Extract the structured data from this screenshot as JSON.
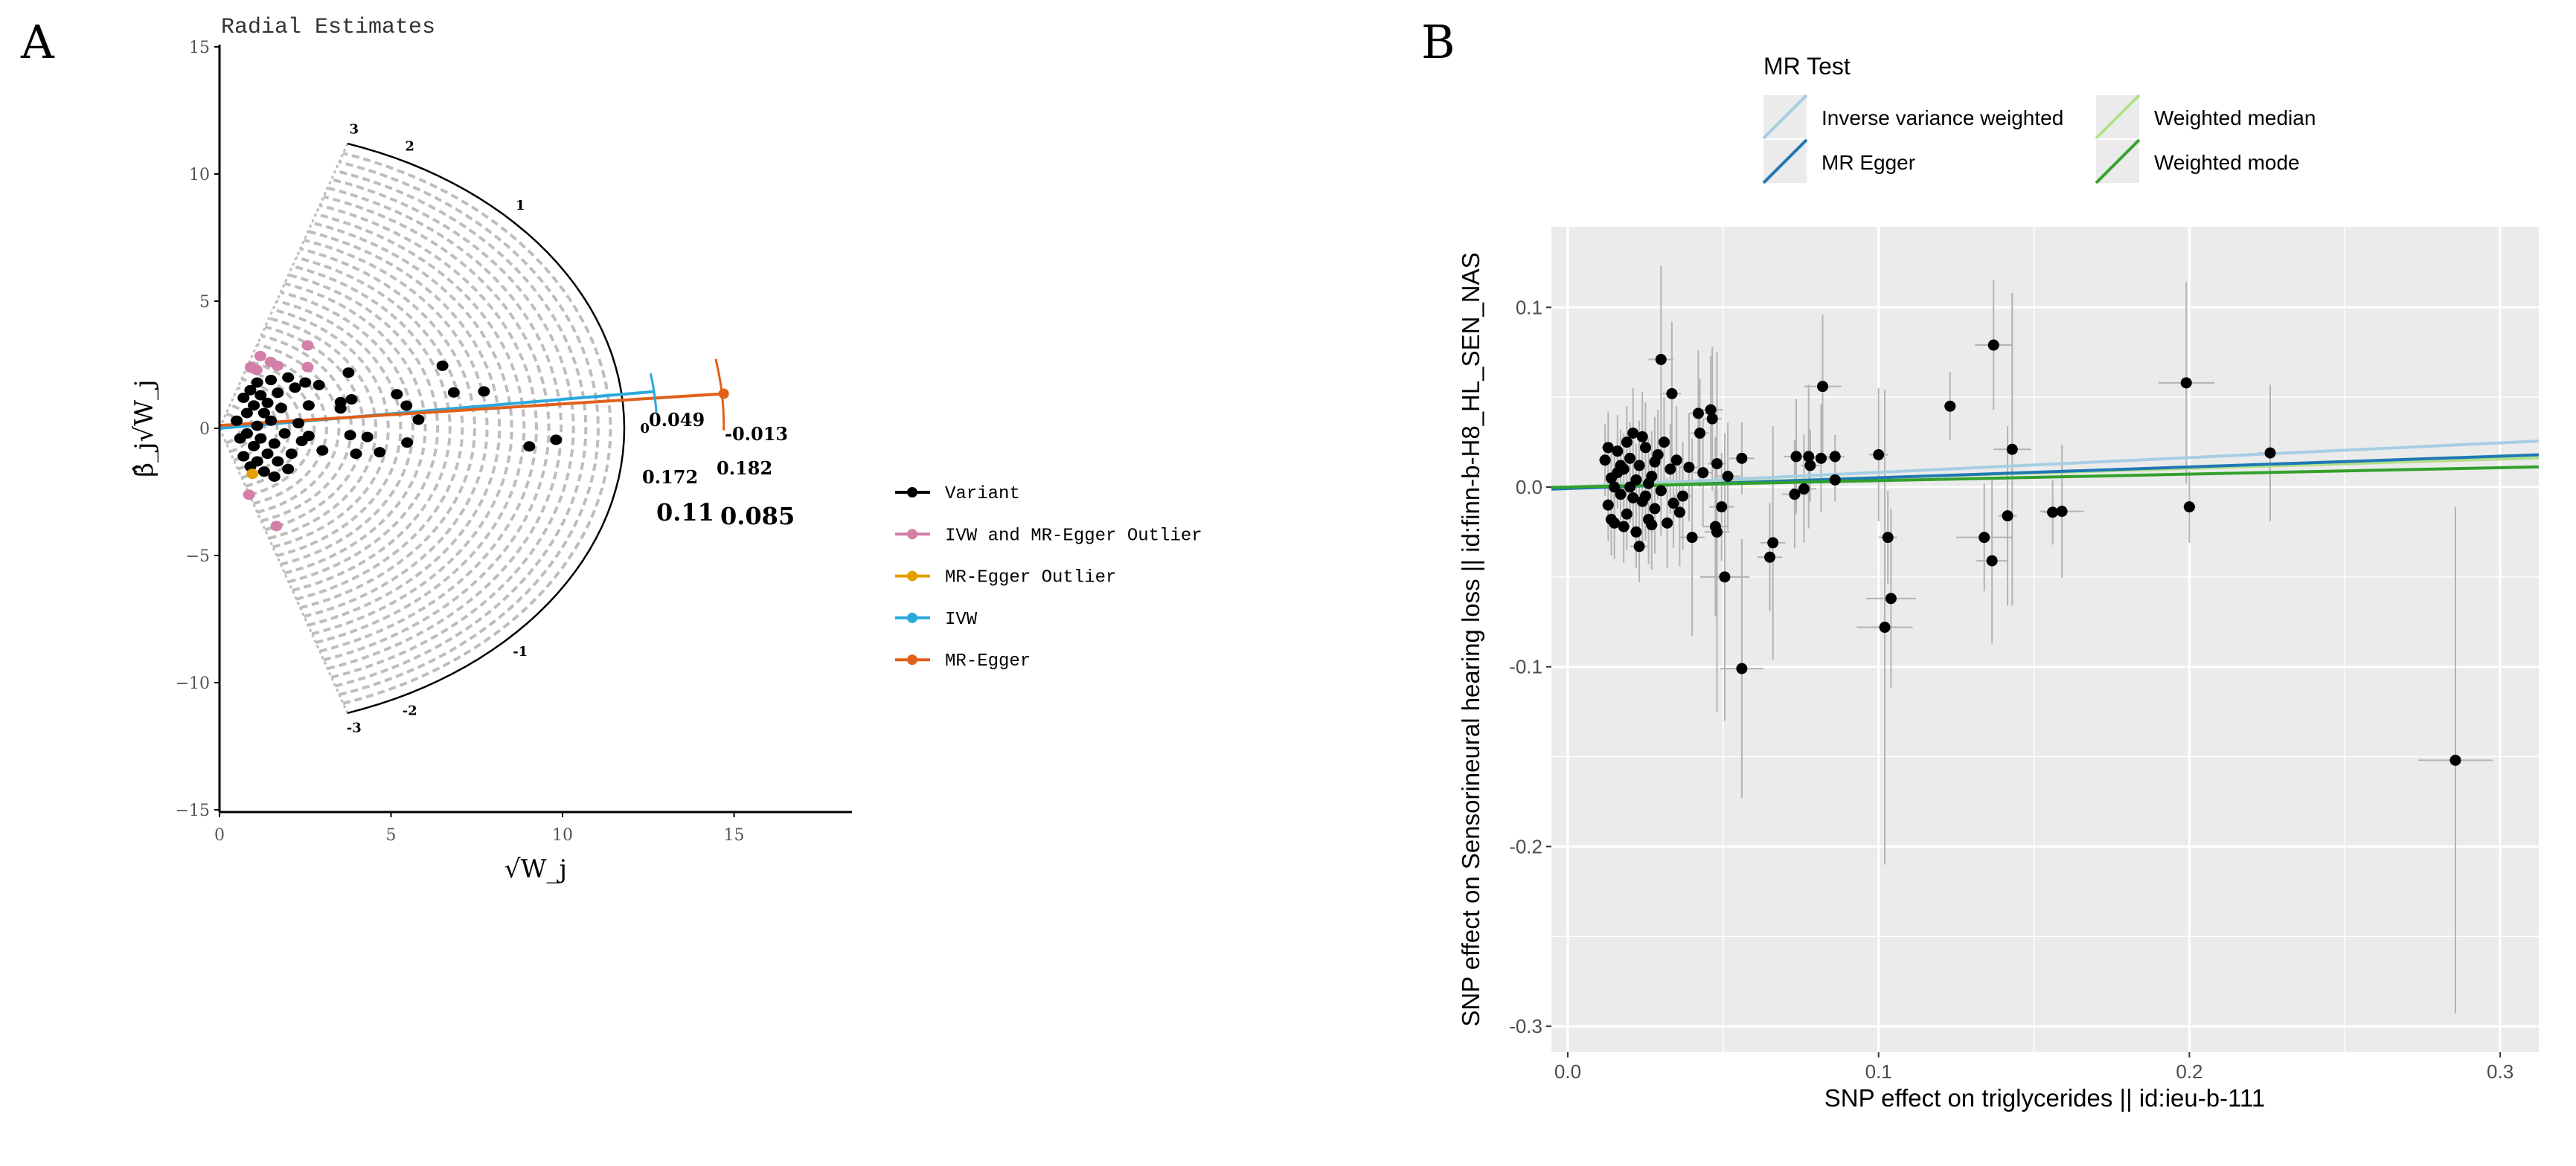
{
  "panel_labels": {
    "a": "A",
    "b": "B"
  },
  "chart_data": [
    {
      "type": "scatter",
      "title": "Radial Estimates",
      "xlabel": "√W_j",
      "ylabel": "β̂_j√W_j",
      "xlim": [
        0,
        18.5
      ],
      "ylim": [
        -15,
        15
      ],
      "x_ticks": [
        0,
        5,
        10,
        15
      ],
      "y_ticks": [
        15,
        10,
        5,
        0,
        -5,
        -10,
        -15
      ],
      "outer_radius": 11.8,
      "scale_labels": [
        3,
        2,
        1,
        0,
        -1,
        -2,
        -3
      ],
      "legend": {
        "position": "right",
        "items": [
          {
            "label": "Variant",
            "color": "#000000"
          },
          {
            "label": "IVW and MR-Egger Outlier",
            "color": "#d37fa8"
          },
          {
            "label": "MR-Egger Outlier",
            "color": "#e69f00"
          },
          {
            "label": "IVW",
            "color": "#2aa9de"
          },
          {
            "label": "MR-Egger",
            "color": "#e0601a"
          }
        ]
      },
      "estimates": {
        "ivw": {
          "estimate": "0.11",
          "upper": "0.172",
          "lower": "0.049",
          "slope": 0.114,
          "intercept": 0,
          "x_end": 12.7
        },
        "egger": {
          "estimate": "0.085",
          "upper": "0.182",
          "lower": "-0.013",
          "slope": 0.085,
          "intercept": 0.11,
          "x_end": 14.7
        }
      },
      "series": [
        {
          "name": "Variant",
          "points": [
            [
              6.5,
              2.46
            ],
            [
              6.83,
              1.41
            ],
            [
              7.71,
              1.45
            ],
            [
              3.76,
              2.19
            ],
            [
              9.03,
              -0.71
            ],
            [
              9.81,
              -0.45
            ],
            [
              5.47,
              -0.56
            ],
            [
              5.8,
              0.34
            ],
            [
              5.45,
              0.89
            ],
            [
              5.17,
              1.34
            ],
            [
              3.85,
              1.14
            ],
            [
              3.53,
              1.03
            ],
            [
              3.53,
              0.78
            ],
            [
              3.81,
              -0.27
            ],
            [
              4.31,
              -0.34
            ],
            [
              3.98,
              -1.0
            ],
            [
              4.67,
              -0.94
            ],
            [
              3.0,
              -0.87
            ],
            [
              2.9,
              1.7
            ],
            [
              0.5,
              0.3
            ],
            [
              0.6,
              -0.4
            ],
            [
              0.7,
              1.2
            ],
            [
              0.7,
              -1.1
            ],
            [
              0.8,
              0.6
            ],
            [
              0.8,
              -0.2
            ],
            [
              0.9,
              1.5
            ],
            [
              0.9,
              -1.5
            ],
            [
              1.0,
              0.9
            ],
            [
              1.0,
              -0.7
            ],
            [
              1.1,
              1.8
            ],
            [
              1.1,
              0.1
            ],
            [
              1.1,
              -1.3
            ],
            [
              1.2,
              1.3
            ],
            [
              1.2,
              -0.4
            ],
            [
              1.3,
              0.6
            ],
            [
              1.3,
              -1.7
            ],
            [
              1.4,
              1.0
            ],
            [
              1.4,
              -1.0
            ],
            [
              1.5,
              1.9
            ],
            [
              1.5,
              0.3
            ],
            [
              1.6,
              -0.6
            ],
            [
              1.7,
              1.4
            ],
            [
              1.7,
              -1.3
            ],
            [
              1.8,
              0.8
            ],
            [
              1.9,
              -0.2
            ],
            [
              2.0,
              2.0
            ],
            [
              2.1,
              -1.0
            ],
            [
              2.2,
              1.6
            ],
            [
              2.3,
              0.2
            ],
            [
              2.4,
              -0.5
            ],
            [
              2.5,
              1.8
            ],
            [
              2.6,
              -0.3
            ],
            [
              2.6,
              0.9
            ],
            [
              2.0,
              -1.6
            ],
            [
              1.6,
              -1.9
            ]
          ]
        },
        {
          "name": "IVW and MR-Egger Outlier",
          "points": [
            [
              2.57,
              3.26
            ],
            [
              1.19,
              2.84
            ],
            [
              1.49,
              2.61
            ],
            [
              1.69,
              2.46
            ],
            [
              0.91,
              2.41
            ],
            [
              1.08,
              2.3
            ],
            [
              2.57,
              2.41
            ],
            [
              0.86,
              -2.61
            ],
            [
              1.66,
              -3.84
            ]
          ]
        },
        {
          "name": "MR-Egger Outlier",
          "points": [
            [
              0.96,
              -1.79
            ]
          ]
        }
      ]
    },
    {
      "type": "scatter",
      "title": "",
      "xlabel": "SNP effect on triglycerides || id:ieu-b-111",
      "ylabel": "SNP effect on Sensorineural hearing loss || id:finn-b-H8_HL_SEN_NAS",
      "xlim": [
        -0.005,
        0.3124
      ],
      "ylim": [
        -0.315,
        0.145
      ],
      "x_ticks": [
        {
          "v": 0,
          "label": "0.0"
        },
        {
          "v": 0.1,
          "label": "0.1"
        },
        {
          "v": 0.2,
          "label": "0.2"
        },
        {
          "v": 0.3,
          "label": "0.3"
        }
      ],
      "y_ticks": [
        {
          "v": 0.1,
          "label": "0.1"
        },
        {
          "v": 0,
          "label": "0.0"
        },
        {
          "v": -0.1,
          "label": "-0.1"
        },
        {
          "v": -0.2,
          "label": "-0.2"
        },
        {
          "v": -0.3,
          "label": "-0.3"
        }
      ],
      "grid": true,
      "legend": {
        "title": "MR Test",
        "position": "top",
        "items": [
          {
            "label": "Inverse variance weighted",
            "color": "#a6cee3"
          },
          {
            "label": "MR Egger",
            "color": "#1f78b4"
          },
          {
            "label": "Weighted median",
            "color": "#b2df8a"
          },
          {
            "label": "Weighted mode",
            "color": "#33a02c"
          }
        ]
      },
      "lines": [
        {
          "name": "Inverse variance weighted",
          "slope": 0.082,
          "intercept": 0
        },
        {
          "name": "Weighted median",
          "slope": 0.052,
          "intercept": 0
        },
        {
          "name": "MR Egger",
          "slope": 0.06,
          "intercept": -0.0008
        },
        {
          "name": "Weighted mode",
          "slope": 0.036,
          "intercept": 0
        }
      ],
      "points_format": [
        "x",
        "y",
        "se_x",
        "se_y"
      ],
      "points": [
        [
          0.03,
          0.071,
          0.004,
          0.052
        ],
        [
          0.0335,
          0.052,
          0.003,
          0.04
        ],
        [
          0.042,
          0.041,
          0.003,
          0.035
        ],
        [
          0.046,
          0.043,
          0.004,
          0.03
        ],
        [
          0.0465,
          0.038,
          0.003,
          0.04
        ],
        [
          0.056,
          0.016,
          0.004,
          0.02
        ],
        [
          0.082,
          0.056,
          0.006,
          0.04
        ],
        [
          0.0735,
          0.017,
          0.004,
          0.032
        ],
        [
          0.0775,
          0.017,
          0.004,
          0.04
        ],
        [
          0.0815,
          0.016,
          0.004,
          0.03
        ],
        [
          0.086,
          0.017,
          0.003,
          0.012
        ],
        [
          0.078,
          0.012,
          0.003,
          0.02
        ],
        [
          0.1,
          0.018,
          0.003,
          0.037
        ],
        [
          0.123,
          0.045,
          0.002,
          0.019
        ],
        [
          0.137,
          0.079,
          0.006,
          0.036
        ],
        [
          0.143,
          0.021,
          0.006,
          0.087
        ],
        [
          0.199,
          0.058,
          0.009,
          0.056
        ],
        [
          0.226,
          0.019,
          0.004,
          0.038
        ],
        [
          0.2,
          -0.011,
          0.002,
          0.02
        ],
        [
          0.156,
          -0.014,
          0.003,
          0.018
        ],
        [
          0.159,
          -0.0135,
          0.007,
          0.037
        ],
        [
          0.1415,
          -0.016,
          0.003,
          0.05
        ],
        [
          0.134,
          -0.028,
          0.009,
          0.03
        ],
        [
          0.1365,
          -0.041,
          0.005,
          0.046
        ],
        [
          0.103,
          -0.028,
          0.003,
          0.026
        ],
        [
          0.104,
          -0.062,
          0.008,
          0.05
        ],
        [
          0.102,
          -0.078,
          0.009,
          0.132
        ],
        [
          0.066,
          -0.031,
          0.004,
          0.065
        ],
        [
          0.065,
          -0.039,
          0.004,
          0.03
        ],
        [
          0.0505,
          -0.05,
          0.008,
          0.08
        ],
        [
          0.056,
          -0.101,
          0.007,
          0.072
        ],
        [
          0.2856,
          -0.152,
          0.012,
          0.141
        ],
        [
          0.04,
          -0.028,
          0.004,
          0.055
        ],
        [
          0.023,
          -0.033,
          0.003,
          0.02
        ],
        [
          0.073,
          -0.004,
          0.004,
          0.03
        ],
        [
          0.076,
          -0.001,
          0.004,
          0.03
        ],
        [
          0.086,
          0.004,
          0.004,
          0.012
        ],
        [
          0.048,
          -0.025,
          0.004,
          0.1
        ],
        [
          0.0475,
          -0.022,
          0.004,
          0.05
        ],
        [
          0.0495,
          -0.011,
          0.004,
          0.03
        ],
        [
          0.0515,
          0.006,
          0.004,
          0.03
        ],
        [
          0.048,
          0.013,
          0.003,
          0.03
        ],
        [
          0.0435,
          0.008,
          0.003,
          0.03
        ],
        [
          0.039,
          0.011,
          0.003,
          0.03
        ],
        [
          0.0425,
          0.03,
          0.003,
          0.03
        ],
        [
          0.037,
          -0.005,
          0.003,
          0.03
        ],
        [
          0.012,
          0.015,
          0.002,
          0.02
        ],
        [
          0.013,
          -0.01,
          0.002,
          0.02
        ],
        [
          0.014,
          0.005,
          0.002,
          0.02
        ],
        [
          0.015,
          -0.02,
          0.002,
          0.02
        ],
        [
          0.016,
          0.02,
          0.002,
          0.02
        ],
        [
          0.017,
          -0.004,
          0.002,
          0.02
        ],
        [
          0.018,
          0.01,
          0.002,
          0.02
        ],
        [
          0.019,
          -0.015,
          0.002,
          0.02
        ],
        [
          0.02,
          0.0,
          0.002,
          0.02
        ],
        [
          0.021,
          0.03,
          0.002,
          0.025
        ],
        [
          0.022,
          -0.025,
          0.002,
          0.02
        ],
        [
          0.023,
          0.012,
          0.002,
          0.025
        ],
        [
          0.024,
          -0.008,
          0.002,
          0.025
        ],
        [
          0.025,
          0.022,
          0.002,
          0.025
        ],
        [
          0.026,
          -0.018,
          0.002,
          0.025
        ],
        [
          0.027,
          0.006,
          0.002,
          0.025
        ],
        [
          0.028,
          -0.012,
          0.002,
          0.025
        ],
        [
          0.029,
          0.018,
          0.002,
          0.025
        ],
        [
          0.03,
          -0.002,
          0.002,
          0.025
        ],
        [
          0.031,
          0.025,
          0.002,
          0.025
        ],
        [
          0.032,
          -0.02,
          0.002,
          0.025
        ],
        [
          0.033,
          0.01,
          0.002,
          0.025
        ],
        [
          0.034,
          -0.009,
          0.002,
          0.025
        ],
        [
          0.035,
          0.015,
          0.002,
          0.03
        ],
        [
          0.036,
          -0.014,
          0.002,
          0.03
        ],
        [
          0.013,
          0.022,
          0.002,
          0.02
        ],
        [
          0.014,
          -0.018,
          0.002,
          0.02
        ],
        [
          0.016,
          0.008,
          0.002,
          0.02
        ],
        [
          0.018,
          -0.022,
          0.002,
          0.02
        ],
        [
          0.02,
          0.016,
          0.002,
          0.02
        ],
        [
          0.022,
          0.004,
          0.002,
          0.02
        ],
        [
          0.024,
          0.028,
          0.002,
          0.025
        ],
        [
          0.026,
          0.002,
          0.002,
          0.025
        ],
        [
          0.028,
          0.014,
          0.002,
          0.025
        ],
        [
          0.015,
          0.0,
          0.002,
          0.02
        ],
        [
          0.017,
          0.012,
          0.002,
          0.02
        ],
        [
          0.019,
          0.025,
          0.002,
          0.02
        ],
        [
          0.021,
          -0.006,
          0.002,
          0.02
        ],
        [
          0.025,
          -0.005,
          0.002,
          0.025
        ],
        [
          0.027,
          -0.021,
          0.002,
          0.025
        ]
      ]
    }
  ]
}
